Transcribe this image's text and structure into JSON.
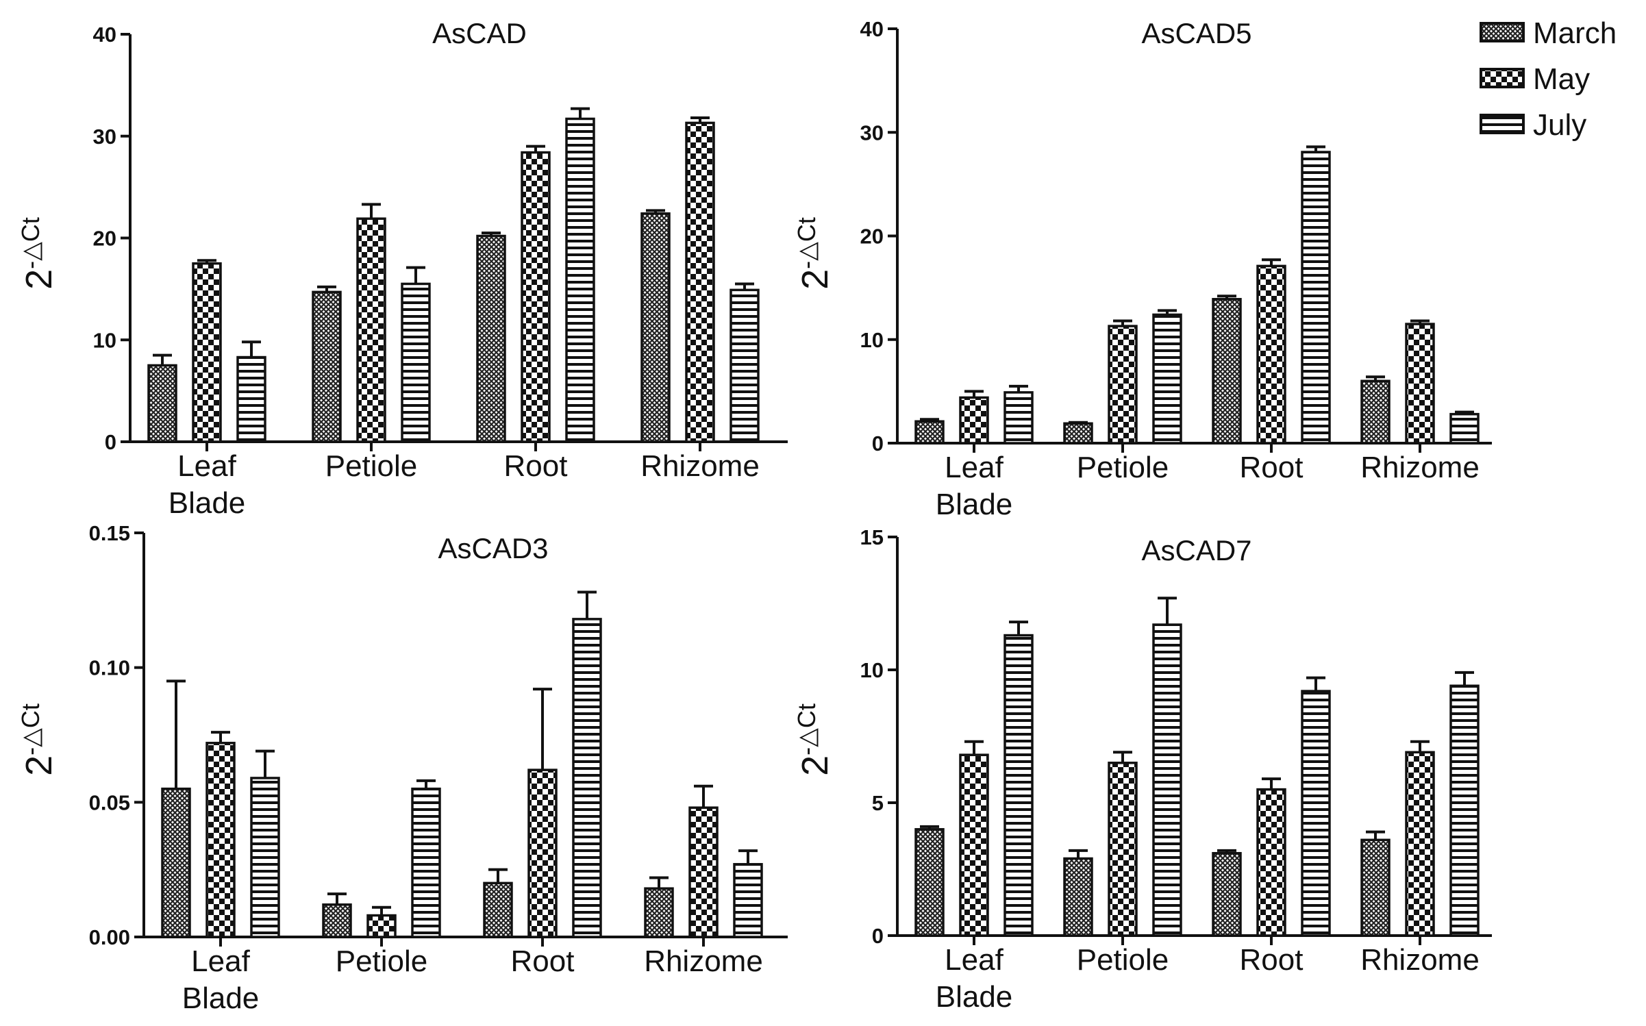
{
  "legend": [
    {
      "name": "March",
      "pattern": "fine-cross"
    },
    {
      "name": "May",
      "pattern": "checker"
    },
    {
      "name": "July",
      "pattern": "horizontal-stripes"
    }
  ],
  "colors": {
    "bar_fill": "#ffffff",
    "pattern_dark": "#222222",
    "axis": "#111111"
  },
  "chart_data": [
    {
      "type": "bar",
      "title": "AsCAD",
      "ylabel": "2-△Ct",
      "ylabel_base": "2",
      "ylabel_sup": "-△Ct",
      "categories": [
        [
          "Leaf",
          "Blade"
        ],
        [
          "Petiole"
        ],
        [
          "Root"
        ],
        [
          "Rhizome"
        ]
      ],
      "ylim": [
        0,
        40
      ],
      "yticks": [
        0,
        10,
        20,
        30,
        40
      ],
      "ytick_labels": [
        "0",
        "10",
        "20",
        "30",
        "40"
      ],
      "series": [
        {
          "name": "March",
          "values": [
            7.5,
            14.7,
            20.2,
            22.4
          ],
          "errors": [
            1.0,
            0.5,
            0.3,
            0.3
          ]
        },
        {
          "name": "May",
          "values": [
            17.5,
            21.9,
            28.4,
            31.3
          ],
          "errors": [
            0.3,
            1.4,
            0.6,
            0.5
          ]
        },
        {
          "name": "July",
          "values": [
            8.3,
            15.5,
            31.7,
            14.9
          ],
          "errors": [
            1.5,
            1.6,
            1.0,
            0.6
          ]
        }
      ]
    },
    {
      "type": "bar",
      "title": "AsCAD5",
      "ylabel": "2-△Ct",
      "ylabel_base": "2",
      "ylabel_sup": "-△Ct",
      "categories": [
        [
          "Leaf",
          "Blade"
        ],
        [
          "Petiole"
        ],
        [
          "Root"
        ],
        [
          "Rhizome"
        ]
      ],
      "ylim": [
        0,
        40
      ],
      "yticks": [
        0,
        10,
        20,
        30,
        40
      ],
      "ytick_labels": [
        "0",
        "10",
        "20",
        "30",
        "40"
      ],
      "series": [
        {
          "name": "March",
          "values": [
            2.1,
            1.9,
            13.9,
            6.0
          ],
          "errors": [
            0.2,
            0.1,
            0.3,
            0.4
          ]
        },
        {
          "name": "May",
          "values": [
            4.4,
            11.3,
            17.1,
            11.5
          ],
          "errors": [
            0.6,
            0.5,
            0.6,
            0.3
          ]
        },
        {
          "name": "July",
          "values": [
            4.9,
            12.4,
            28.1,
            2.8
          ],
          "errors": [
            0.6,
            0.4,
            0.5,
            0.2
          ]
        }
      ]
    },
    {
      "type": "bar",
      "title": "AsCAD3",
      "ylabel": "2-△Ct",
      "ylabel_base": "2",
      "ylabel_sup": "-△Ct",
      "categories": [
        [
          "Leaf",
          "Blade"
        ],
        [
          "Petiole"
        ],
        [
          "Root"
        ],
        [
          "Rhizome"
        ]
      ],
      "ylim": [
        0,
        0.15
      ],
      "yticks": [
        0,
        0.05,
        0.1,
        0.15
      ],
      "ytick_labels": [
        "0.00",
        "0.05",
        "0.10",
        "0.15"
      ],
      "series": [
        {
          "name": "March",
          "values": [
            0.055,
            0.012,
            0.02,
            0.018
          ],
          "errors": [
            0.04,
            0.004,
            0.005,
            0.004
          ]
        },
        {
          "name": "May",
          "values": [
            0.072,
            0.008,
            0.062,
            0.048
          ],
          "errors": [
            0.004,
            0.003,
            0.03,
            0.008
          ]
        },
        {
          "name": "July",
          "values": [
            0.059,
            0.055,
            0.118,
            0.027
          ],
          "errors": [
            0.01,
            0.003,
            0.01,
            0.005
          ]
        }
      ]
    },
    {
      "type": "bar",
      "title": "AsCAD7",
      "ylabel": "2-△Ct",
      "ylabel_base": "2",
      "ylabel_sup": "-△Ct",
      "categories": [
        [
          "Leaf",
          "Blade"
        ],
        [
          "Petiole"
        ],
        [
          "Root"
        ],
        [
          "Rhizome"
        ]
      ],
      "ylim": [
        0,
        15
      ],
      "yticks": [
        0,
        5,
        10,
        15
      ],
      "ytick_labels": [
        "0",
        "5",
        "10",
        "15"
      ],
      "series": [
        {
          "name": "March",
          "values": [
            4.0,
            2.9,
            3.1,
            3.6
          ],
          "errors": [
            0.1,
            0.3,
            0.1,
            0.3
          ]
        },
        {
          "name": "May",
          "values": [
            6.8,
            6.5,
            5.5,
            6.9
          ],
          "errors": [
            0.5,
            0.4,
            0.4,
            0.4
          ]
        },
        {
          "name": "July",
          "values": [
            11.3,
            11.7,
            9.2,
            9.4
          ],
          "errors": [
            0.5,
            1.0,
            0.5,
            0.5
          ]
        }
      ]
    }
  ]
}
